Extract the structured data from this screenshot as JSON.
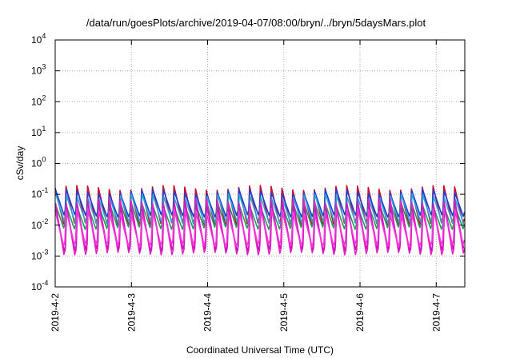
{
  "chart_data": {
    "type": "line",
    "title": "/data/run/goesPlots/archive/2019-04-07/08:00/bryn/../bryn/5daysMars.plot",
    "xlabel": "Coordinated Universal Time (UTC)",
    "ylabel": "cSv/day",
    "yscale": "log",
    "ylim": [
      0.0001,
      10000
    ],
    "xlim": [
      "2019-04-02",
      "2019-04-07 09:00"
    ],
    "grid": true,
    "legend": "none",
    "x_ticks": [
      "2019-4-2",
      "2019-4-3",
      "2019-4-4",
      "2019-4-5",
      "2019-4-6",
      "2019-4-7"
    ],
    "y_ticks": [
      {
        "base": "10",
        "exp": "-4"
      },
      {
        "base": "10",
        "exp": "-3"
      },
      {
        "base": "10",
        "exp": "-2"
      },
      {
        "base": "10",
        "exp": "-1"
      },
      {
        "base": "10",
        "exp": "0"
      },
      {
        "base": "10",
        "exp": "1"
      },
      {
        "base": "10",
        "exp": "2"
      },
      {
        "base": "10",
        "exp": "3"
      },
      {
        "base": "10",
        "exp": "4"
      }
    ],
    "pattern": {
      "description": "sawtooth",
      "period_hours": 3.4,
      "days": 5.375
    },
    "series": [
      {
        "color": "#c8102e",
        "peak": 0.16,
        "trough": 0.011
      },
      {
        "color": "#1f3fd6",
        "peak": 0.12,
        "trough": 0.02
      },
      {
        "color": "#2aa7d8",
        "peak": 0.085,
        "trough": 0.012
      },
      {
        "color": "#1f9e5a",
        "peak": 0.05,
        "trough": 0.008
      },
      {
        "color": "#e81ec8",
        "peak": 0.06,
        "trough": 0.0012
      },
      {
        "color": "#c61ab8",
        "peak": 0.04,
        "trough": 0.0016
      },
      {
        "color": "#ff33dd",
        "peak": 0.03,
        "trough": 0.0022
      }
    ]
  }
}
